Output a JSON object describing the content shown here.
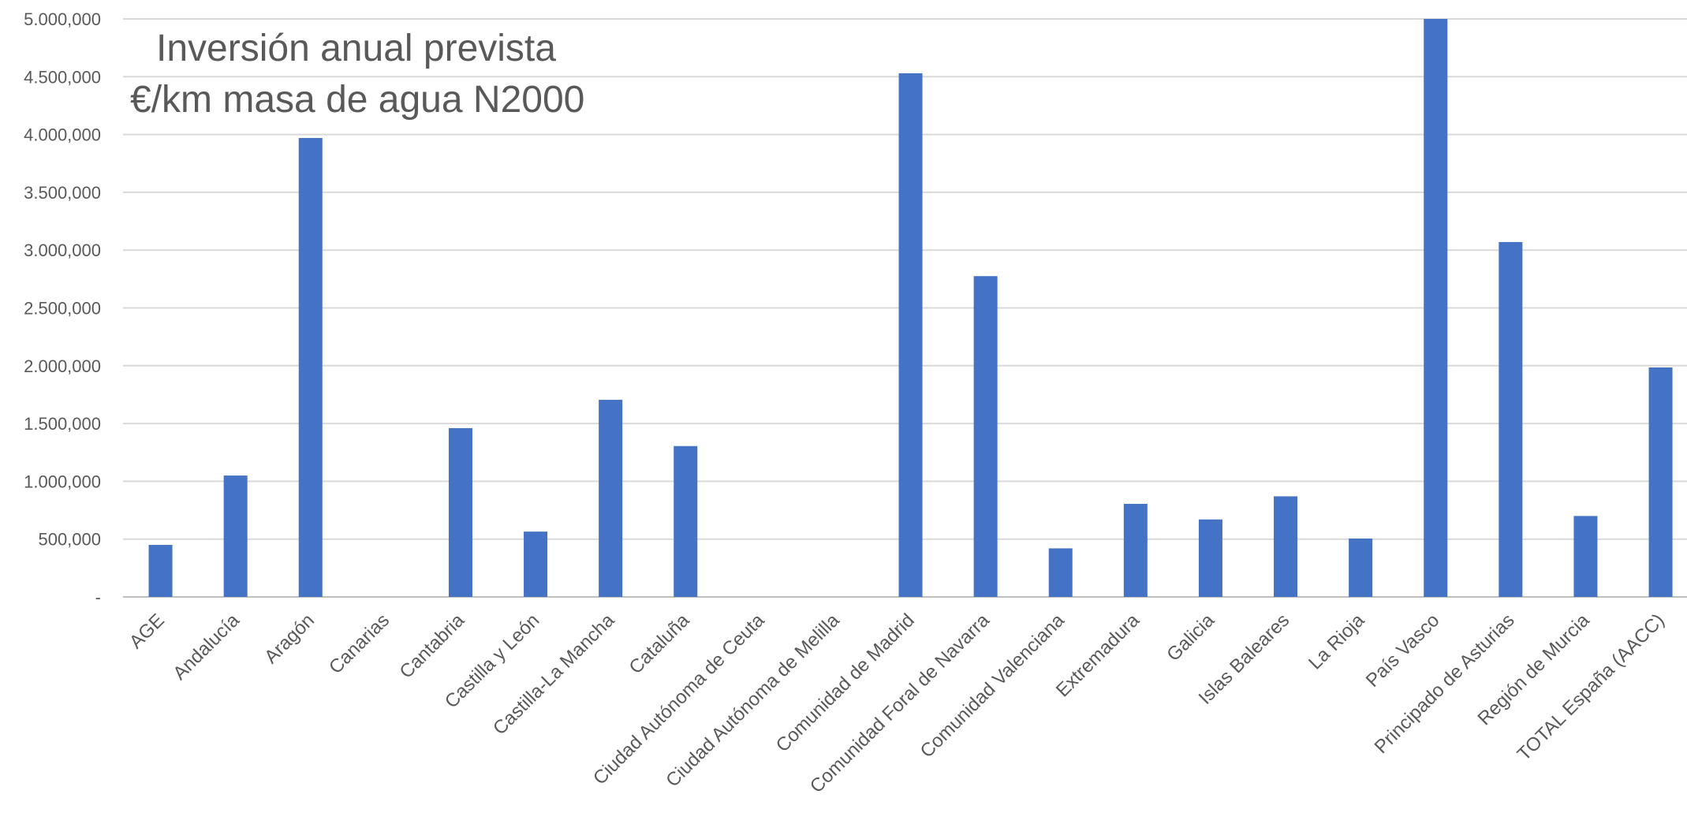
{
  "chart_data": {
    "type": "bar",
    "title": [
      "Inversión anual prevista",
      "€/km masa de agua N2000"
    ],
    "categories": [
      "AGE",
      "Andalucía",
      "Aragón",
      "Canarias",
      "Cantabria",
      "Castilla y León",
      "Castilla-La Mancha",
      "Cataluña",
      "Ciudad Autónoma de Ceuta",
      "Ciudad Autónoma de Melilla",
      "Comunidad de Madrid",
      "Comunidad Foral de Navarra",
      "Comunidad Valenciana",
      "Extremadura",
      "Galicia",
      "Islas Baleares",
      "La Rioja",
      "País Vasco",
      "Principado de Asturias",
      "Región de Murcia",
      "TOTAL España (AACC)"
    ],
    "values": [
      450000,
      1050000,
      3970000,
      0,
      1460000,
      565000,
      1705000,
      1305000,
      0,
      0,
      4530000,
      2775000,
      420000,
      805000,
      670000,
      870000,
      505000,
      5000000,
      3070000,
      700000,
      1985000
    ],
    "ylim": [
      0,
      5000000
    ],
    "yticks": [
      0,
      500000,
      1000000,
      1500000,
      2000000,
      2500000,
      3000000,
      3500000,
      4000000,
      4500000,
      5000000
    ],
    "ytick_labels": [
      "-",
      "500,000",
      "1.000,000",
      "1.500,000",
      "2.000,000",
      "2.500,000",
      "3.000,000",
      "3.500,000",
      "4.000,000",
      "4.500,000",
      "5.000,000"
    ],
    "xlabel": "",
    "ylabel": "",
    "grid": true,
    "legend": "none",
    "colors": {
      "bar": "#4472c4",
      "grid": "#d9d9d9",
      "text": "#595959"
    }
  }
}
